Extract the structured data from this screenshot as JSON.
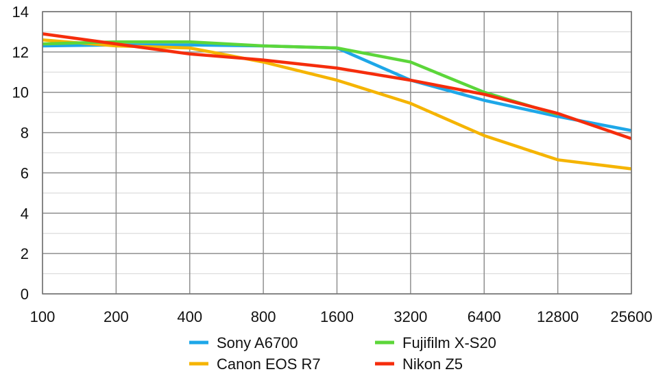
{
  "chart_data": {
    "type": "line",
    "title": "",
    "xlabel": "",
    "ylabel": "",
    "x_scale": "log2",
    "categories": [
      "100",
      "200",
      "400",
      "800",
      "1600",
      "3200",
      "6400",
      "12800",
      "25600"
    ],
    "ylim": [
      0,
      14
    ],
    "yticks": [
      0,
      2,
      4,
      6,
      8,
      10,
      12,
      14
    ],
    "grid": true,
    "legend": "bottom",
    "series": [
      {
        "name": "Sony A6700",
        "color": "#1ea7e8",
        "values": [
          12.3,
          12.35,
          12.35,
          12.3,
          12.2,
          10.6,
          9.6,
          8.8,
          8.1
        ]
      },
      {
        "name": "Canon EOS R7",
        "color": "#f5b400",
        "values": [
          12.6,
          12.3,
          12.2,
          11.5,
          10.6,
          9.45,
          7.85,
          6.65,
          6.2
        ]
      },
      {
        "name": "Fujifilm X-S20",
        "color": "#5cd63a",
        "values": [
          12.4,
          12.5,
          12.5,
          12.3,
          12.2,
          11.5,
          10.0,
          8.9,
          null
        ]
      },
      {
        "name": "Nikon Z5",
        "color": "#f52d0c",
        "values": [
          12.9,
          12.4,
          11.9,
          11.6,
          11.2,
          10.6,
          9.9,
          8.95,
          7.7
        ]
      }
    ]
  }
}
